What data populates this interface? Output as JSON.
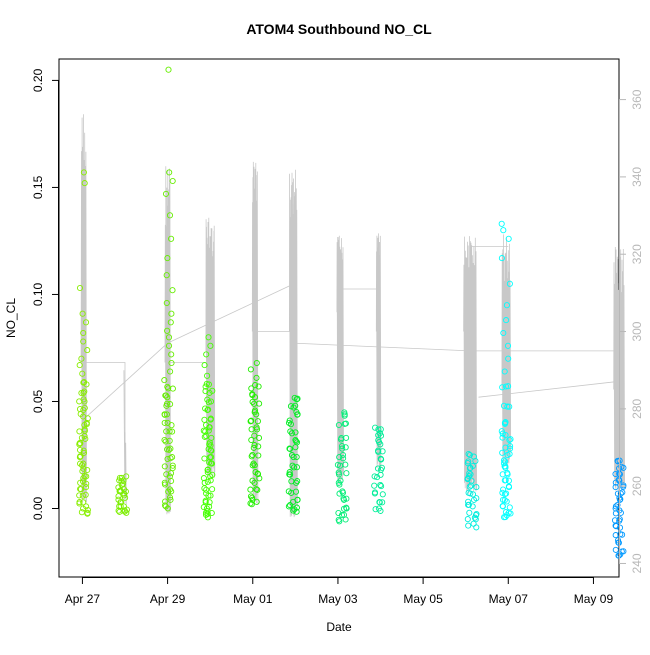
{
  "chart_data": {
    "type": "scatter",
    "title": "ATOM4 Southbound NO_CL",
    "xlabel": "Date",
    "ylabel": "NO_CL",
    "xlim": [
      -0.55,
      12.6
    ],
    "ylim": [
      -0.032,
      0.21
    ],
    "x_ticks": [
      {
        "value": 0,
        "label": "Apr 27"
      },
      {
        "value": 2,
        "label": "Apr 29"
      },
      {
        "value": 4,
        "label": "May 01"
      },
      {
        "value": 6,
        "label": "May 03"
      },
      {
        "value": 8,
        "label": "May 05"
      },
      {
        "value": 10,
        "label": "May 07"
      },
      {
        "value": 12,
        "label": "May 09"
      }
    ],
    "y_ticks": [
      0.0,
      0.05,
      0.1,
      0.15,
      0.2
    ],
    "y_tick_labels": [
      "0.00",
      "0.05",
      "0.10",
      "0.15",
      "0.20"
    ],
    "y2_ticks": [
      240,
      260,
      280,
      300,
      320,
      340,
      360
    ],
    "y2_lim": [
      236.5,
      370.5
    ],
    "y2_color": "#b8b8b8",
    "x_units": "days since Apr 27",
    "series": [
      {
        "name": "Apr 27",
        "x": 0.03,
        "color": "#88ee00",
        "values": [
          0.157,
          0.152,
          0.103,
          0.091,
          0.087,
          0.082,
          0.078,
          0.074,
          0.07,
          0.067,
          0.063,
          0.058,
          0.054,
          0.05,
          0.046,
          0.043,
          0.04,
          0.036,
          0.033,
          0.03,
          0.027,
          0.024,
          0.021,
          0.018,
          0.015,
          0.012,
          0.009,
          0.006,
          0.003,
          0.0,
          -0.002
        ]
      },
      {
        "name": "Apr 28",
        "x": 0.95,
        "color": "#7cee00",
        "values": [
          0.015,
          0.013,
          0.011,
          0.009,
          0.007,
          0.005,
          0.003,
          0.001,
          -0.001,
          -0.002
        ]
      },
      {
        "name": "Apr 29",
        "x": 2.02,
        "color": "#66ee00",
        "values": [
          0.205,
          0.157,
          0.153,
          0.147,
          0.137,
          0.126,
          0.117,
          0.109,
          0.102,
          0.096,
          0.091,
          0.087,
          0.083,
          0.08,
          0.076,
          0.072,
          0.068,
          0.064,
          0.06,
          0.056,
          0.052,
          0.048,
          0.044,
          0.04,
          0.036,
          0.032,
          0.028,
          0.024,
          0.02,
          0.016,
          0.012,
          0.008,
          0.004,
          0.001
        ]
      },
      {
        "name": "Apr 30",
        "x": 2.95,
        "color": "#44ff00",
        "values": [
          0.08,
          0.076,
          0.072,
          0.067,
          0.062,
          0.058,
          0.054,
          0.05,
          0.046,
          0.042,
          0.039,
          0.036,
          0.033,
          0.03,
          0.027,
          0.024,
          0.021,
          0.018,
          0.015,
          0.012,
          0.009,
          0.006,
          0.003,
          0.0,
          -0.002,
          -0.003
        ]
      },
      {
        "name": "May 01",
        "x": 4.05,
        "color": "#22ee00",
        "values": [
          0.068,
          0.065,
          0.061,
          0.057,
          0.053,
          0.049,
          0.045,
          0.041,
          0.037,
          0.033,
          0.029,
          0.025,
          0.021,
          0.017,
          0.013,
          0.009,
          0.005,
          0.002
        ]
      },
      {
        "name": "May 02",
        "x": 4.95,
        "color": "#00ee22",
        "values": [
          0.051,
          0.048,
          0.044,
          0.04,
          0.036,
          0.032,
          0.028,
          0.024,
          0.02,
          0.016,
          0.012,
          0.008,
          0.004,
          0.001,
          -0.001
        ]
      },
      {
        "name": "May 03",
        "x": 6.1,
        "color": "#00ee77",
        "values": [
          0.044,
          0.039,
          0.033,
          0.028,
          0.024,
          0.02,
          0.016,
          0.012,
          0.008,
          0.004,
          0.0,
          -0.003,
          -0.006
        ]
      },
      {
        "name": "May 04",
        "x": 6.95,
        "color": "#00ee99",
        "values": [
          0.037,
          0.034,
          0.031,
          0.027,
          0.023,
          0.019,
          0.015,
          0.011,
          0.007,
          0.003,
          0.0
        ]
      },
      {
        "name": "May 06",
        "x": 9.15,
        "color": "#00eedd",
        "values": [
          0.025,
          0.022,
          0.019,
          0.016,
          0.013,
          0.01,
          0.007,
          0.004,
          0.001,
          -0.002,
          -0.005,
          -0.008
        ]
      },
      {
        "name": "May 07",
        "x": 9.95,
        "color": "#00ffff",
        "values": [
          0.133,
          0.13,
          0.126,
          0.117,
          0.105,
          0.095,
          0.088,
          0.082,
          0.076,
          0.07,
          0.064,
          0.057,
          0.048,
          0.04,
          0.035,
          0.032,
          0.028,
          0.025,
          0.022,
          0.019,
          0.016,
          0.013,
          0.01,
          0.007,
          0.004,
          0.001,
          -0.002,
          -0.004
        ]
      },
      {
        "name": "May 09",
        "x": 12.6,
        "color": "#0099ff",
        "values": [
          0.022,
          0.019,
          0.016,
          0.013,
          0.01,
          0.007,
          0.004,
          0.001,
          -0.002,
          -0.005,
          -0.008,
          -0.012,
          -0.016,
          -0.02,
          -0.022
        ]
      }
    ],
    "line_series": {
      "name": "secondary trace",
      "color": "#c8c8c8",
      "axis": "right"
    }
  }
}
